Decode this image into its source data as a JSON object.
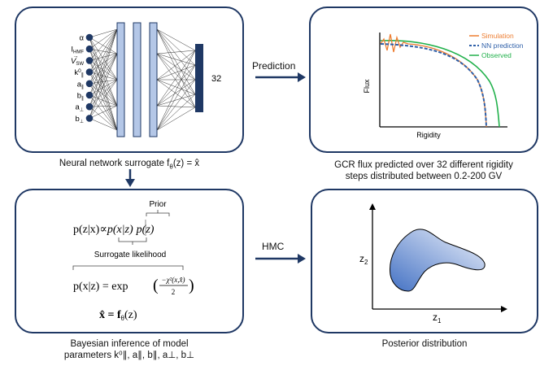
{
  "nn_panel": {
    "inputs": [
      "α",
      "I",
      "V",
      "k",
      "a",
      "b",
      "a",
      "b"
    ],
    "input_subscripts": [
      "",
      "HMF",
      "SW",
      "∥",
      "∥",
      "∥",
      "⊥",
      "⊥"
    ],
    "k_superscript": "0",
    "output_size": "32",
    "caption_text": "Neural network surrogate f",
    "caption_sub": "θ",
    "caption_rest": "(z) = x̂"
  },
  "prediction_arrow": {
    "label": "Prediction"
  },
  "flux_panel": {
    "ylabel": "Flux",
    "xlabel": "Rigidity",
    "legend": [
      {
        "label": "Simulation",
        "color": "#ed7d31"
      },
      {
        "label": "NN prediction",
        "color": "#2e5fa8"
      },
      {
        "label": "Observed",
        "color": "#22b14c"
      }
    ],
    "caption_line1": "GCR flux predicted over 32 different rigidity",
    "caption_line2": "steps distributed between 0.2-200 GV"
  },
  "bayes_panel": {
    "prior_label": "Prior",
    "likelihood_label": "Surrogate likelihood",
    "eq1_left": "p(z|x)∝",
    "eq1_mid": "p(x|z)",
    "eq1_right": "p(z)",
    "eq2_left": "p(x|z) = exp",
    "eq2_num": "−χ²(x,x̂)",
    "eq2_den": "2",
    "eq3": "x̂ = f",
    "eq3_sub": "θ",
    "eq3_rest": "(z)",
    "caption_line1": "Bayesian inference of model",
    "caption_line2": "parameters k⁰∥, a∥, b∥, a⊥, b⊥"
  },
  "hmc_arrow": {
    "label": "HMC"
  },
  "posterior_panel": {
    "ylabel": "z",
    "ylabel_sub": "2",
    "xlabel": "z",
    "xlabel_sub": "1",
    "caption": "Posterior distribution"
  },
  "colors": {
    "border": "#1f3864",
    "layer_fill": "#b4c7e7",
    "output_fill": "#1f3864",
    "node_fill": "#1f3864"
  }
}
